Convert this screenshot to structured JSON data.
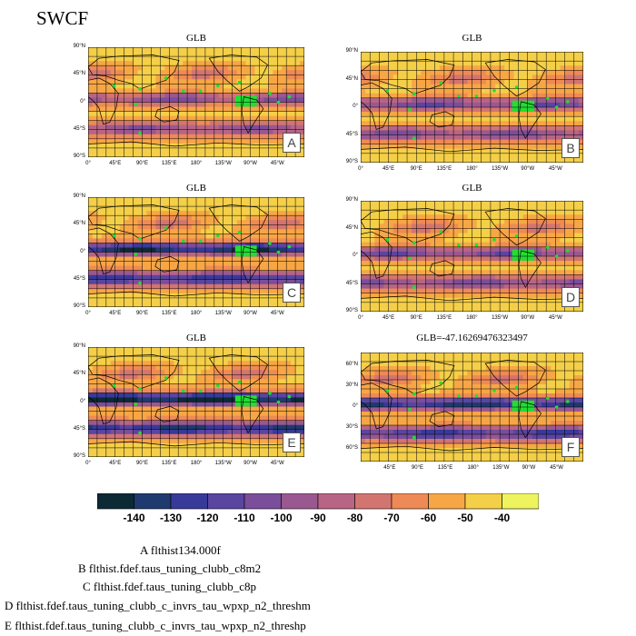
{
  "title": "SWCF",
  "panels": [
    {
      "id": "A",
      "title": "GLB",
      "letter": "A",
      "lat_ticks": [
        "90°N",
        "45°N",
        "0°",
        "45°S",
        "90°S"
      ]
    },
    {
      "id": "B",
      "title": "GLB",
      "letter": "B",
      "lat_ticks": [
        "90°N",
        "45°N",
        "0°",
        "45°S",
        "90°S"
      ]
    },
    {
      "id": "C",
      "title": "GLB",
      "letter": "C",
      "lat_ticks": [
        "90°N",
        "45°N",
        "0°",
        "45°S",
        "90°S"
      ]
    },
    {
      "id": "D",
      "title": "GLB",
      "letter": "D",
      "lat_ticks": [
        "90°N",
        "45°N",
        "0°",
        "45°S",
        "90°S"
      ]
    },
    {
      "id": "E",
      "title": "GLB",
      "letter": "E",
      "lat_ticks": [
        "90°N",
        "45°N",
        "0°",
        "45°S",
        "90°S"
      ]
    },
    {
      "id": "F",
      "title": "GLB=-47.16269476323497",
      "letter": "F",
      "lat_ticks": [
        "60°N",
        "30°N",
        "0°",
        "30°S",
        "60°S"
      ]
    }
  ],
  "lon_ticks": [
    "0°",
    "45°E",
    "90°E",
    "135°E",
    "180°",
    "135°W",
    "90°W",
    "45°W"
  ],
  "lon_ticks_f": [
    "45°E",
    "90°E",
    "135°E",
    "180°",
    "135°W",
    "90°W",
    "45°W"
  ],
  "colorbar": {
    "colors": [
      "#0b2a34",
      "#1f3a6e",
      "#383a9a",
      "#5a45a0",
      "#7a4e9a",
      "#9a5890",
      "#b86585",
      "#d27570",
      "#ee8a55",
      "#f7a646",
      "#f4cf48",
      "#eef45e"
    ],
    "labels": [
      "-140",
      "-130",
      "-120",
      "-110",
      "-100",
      "-90",
      "-80",
      "-70",
      "-60",
      "-50",
      "-40"
    ]
  },
  "legend": [
    "A  flthist134.000f",
    "B  flthist.fdef.taus_tuning_clubb_c8m2",
    "C  flthist.fdef.taus_tuning_clubb_c8p",
    "D  flthist.fdef.taus_tuning_clubb_c_invrs_tau_wpxp_n2_threshm",
    "E  flthist.fdef.taus_tuning_clubb_c_invrs_tau_wpxp_n2_threshp"
  ]
}
